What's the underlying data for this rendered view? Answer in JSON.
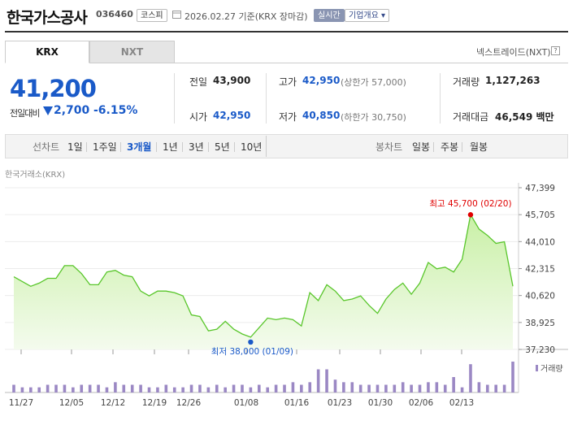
{
  "header": {
    "company": "한국가스공사",
    "code": "036460",
    "market_tag": "코스피",
    "date_text": "2026.02.27 기준(KRX 장마감)",
    "realtime_tag": "실시간",
    "company_info": "기업개요"
  },
  "tabs": {
    "krx": "KRX",
    "nxt": "NXT",
    "nxt_link": "넥스트레이드(NXT)"
  },
  "price": {
    "current": "41,200",
    "change_label": "전일대비",
    "change": "2,700",
    "change_pct": "-6.15%"
  },
  "summary": {
    "prev_close_label": "전일",
    "prev_close": "43,900",
    "open_label": "시가",
    "open": "42,950",
    "high_label": "고가",
    "high": "42,950",
    "upper_limit": "(상한가 57,000)",
    "low_label": "저가",
    "low": "40,850",
    "lower_limit": "(하한가 30,750)",
    "volume_label": "거래량",
    "volume": "1,127,263",
    "amount_label": "거래대금",
    "amount": "46,549 백만"
  },
  "toolbar": {
    "line_label": "선차트",
    "periods": [
      "1일",
      "1주일",
      "3개월",
      "1년",
      "3년",
      "5년",
      "10년"
    ],
    "candle_label": "봉차트",
    "candles": [
      "일봉",
      "주봉",
      "월봉"
    ]
  },
  "chart_data": {
    "type": "area",
    "source_label": "한국거래소(KRX)",
    "y_ticks": [
      "47,399",
      "45,705",
      "44,010",
      "42,315",
      "40,620",
      "38,925",
      "37,230"
    ],
    "ylim": [
      37230,
      47399
    ],
    "x_ticks": [
      "11/27",
      "12/05",
      "12/12",
      "12/19",
      "12/26",
      "01/08",
      "01/16",
      "01/23",
      "01/30",
      "02/06",
      "02/13"
    ],
    "prices": [
      41800,
      41500,
      41200,
      41400,
      41700,
      41700,
      42500,
      42500,
      42000,
      41300,
      41300,
      42100,
      42200,
      41900,
      41800,
      40900,
      40600,
      40900,
      40900,
      40800,
      40600,
      39400,
      39300,
      38400,
      38500,
      39000,
      38500,
      38200,
      38000,
      38600,
      39200,
      39100,
      39200,
      39100,
      38700,
      40800,
      40300,
      41300,
      40900,
      40300,
      40400,
      40600,
      40000,
      39500,
      40400,
      41000,
      41400,
      40700,
      41400,
      42700,
      42300,
      42400,
      42100,
      42900,
      45700,
      44800,
      44400,
      43900,
      44000,
      41200
    ],
    "volumes": [
      3,
      2,
      2,
      2,
      3,
      3,
      3,
      2,
      3,
      3,
      3,
      2,
      4,
      3,
      3,
      3,
      2,
      2,
      3,
      2,
      2,
      3,
      3,
      2,
      3,
      2,
      3,
      3,
      2,
      3,
      2,
      3,
      3,
      4,
      3,
      4,
      9,
      9,
      5,
      4,
      4,
      3,
      3,
      3,
      3,
      3,
      4,
      3,
      3,
      4,
      4,
      3,
      6,
      2,
      11,
      4,
      3,
      3,
      3,
      12
    ],
    "volume_label": "거래량",
    "max_label": "최고 45,700 (02/20)",
    "min_label": "최저 38,000 (01/09)",
    "colors": {
      "line": "#59c62b",
      "fill_top": "#c9f0a6",
      "volume": "#9b88c4",
      "max": "#e00000",
      "min": "#1a5ac8"
    }
  }
}
